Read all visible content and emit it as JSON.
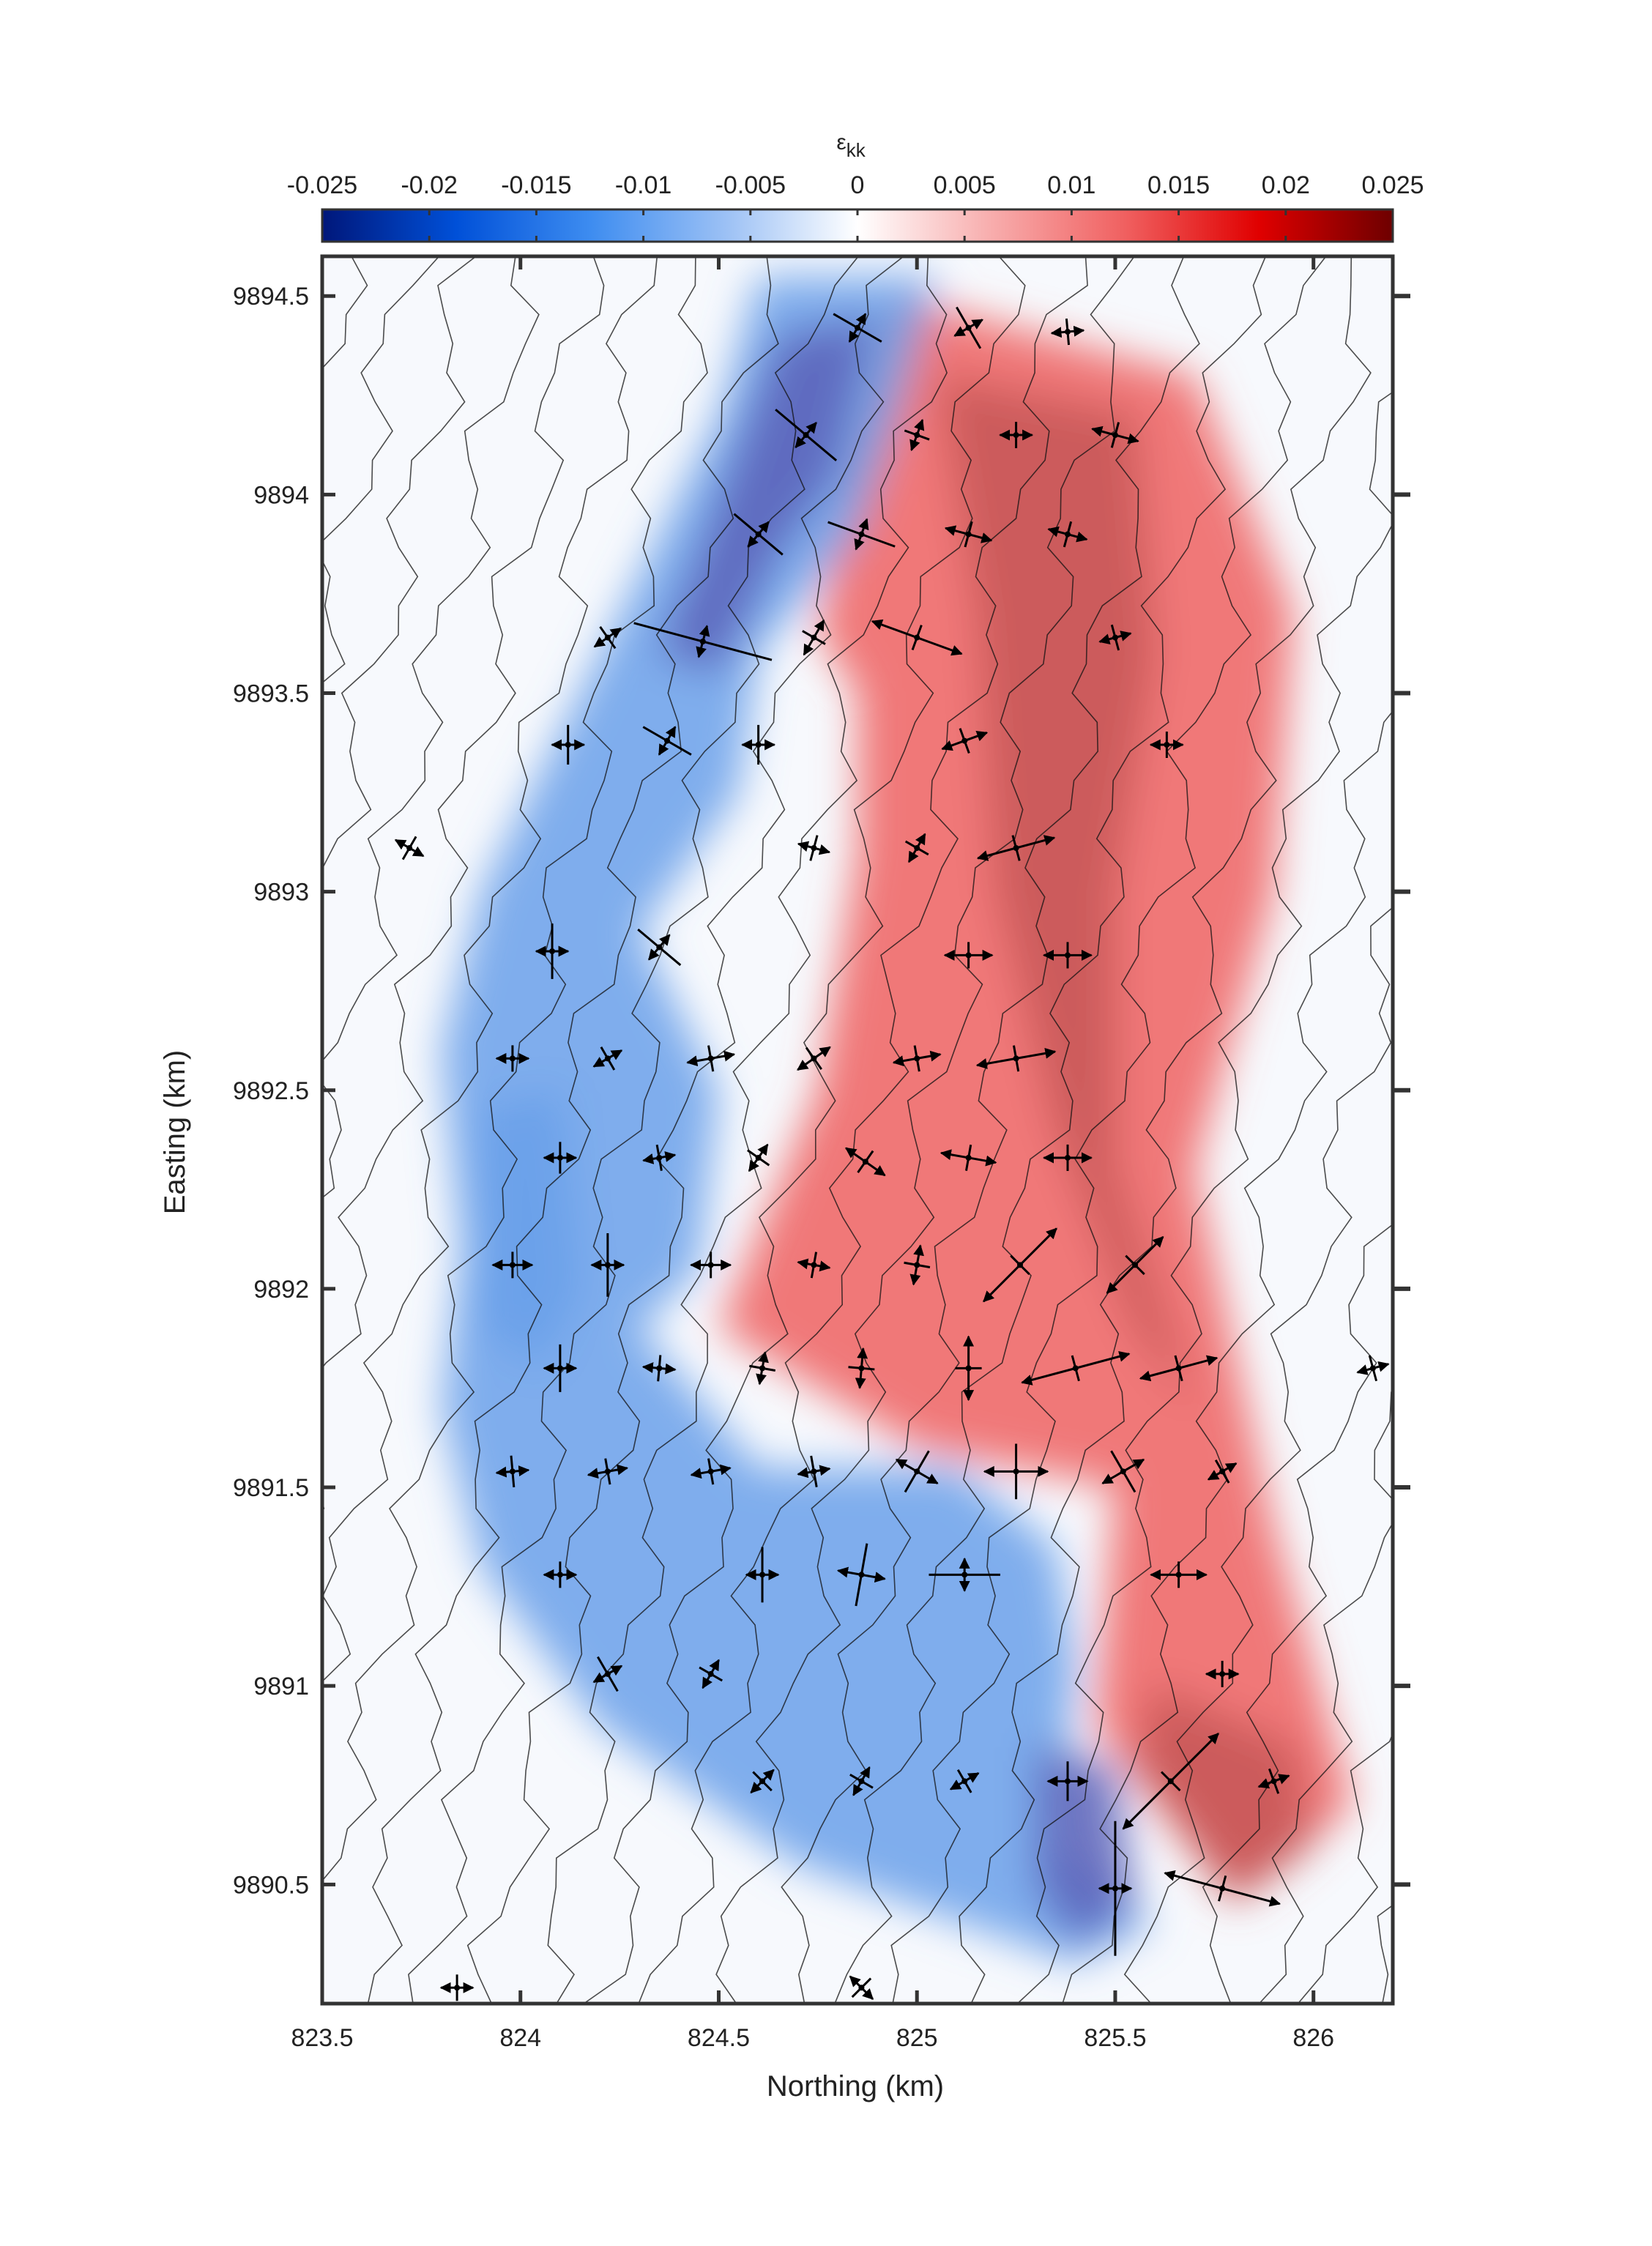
{
  "chart_data": {
    "type": "heatmap",
    "title": "",
    "xlabel": "Northing (km)",
    "ylabel": "Easting (km)",
    "xlim": [
      823.5,
      826.2
    ],
    "ylim": [
      9890.2,
      9894.6
    ],
    "xticks": [
      823.5,
      824,
      824.5,
      825,
      825.5,
      826
    ],
    "xtick_labels": [
      "823.5",
      "824",
      "824.5",
      "825",
      "825.5",
      "826"
    ],
    "yticks": [
      9890.5,
      9891,
      9891.5,
      9892,
      9892.5,
      9893,
      9893.5,
      9894,
      9894.5
    ],
    "ytick_labels": [
      "9890.5",
      "9891",
      "9891.5",
      "9892",
      "9892.5",
      "9893",
      "9893.5",
      "9894",
      "9894.5"
    ],
    "colorbar": {
      "title": "ε",
      "title_subscript": "kk",
      "location": "top",
      "range": [
        -0.025,
        0.025
      ],
      "ticks": [
        -0.025,
        -0.02,
        -0.015,
        -0.01,
        -0.005,
        0,
        0.005,
        0.01,
        0.015,
        0.02,
        0.025
      ],
      "tick_labels": [
        "-0.025",
        "-0.02",
        "-0.015",
        "-0.01",
        "-0.005",
        "0",
        "0.005",
        "0.01",
        "0.015",
        "0.02",
        "0.025"
      ],
      "colormap": [
        "#00177a",
        "#0050d8",
        "#3d8cf0",
        "#9ec2f5",
        "#ffffff",
        "#f8b0b0",
        "#f06060",
        "#e00000",
        "#6e0000"
      ]
    },
    "field_zones": [
      {
        "kind": "extension",
        "polygon": [
          [
            824.95,
            9894.5
          ],
          [
            825.7,
            9894.3
          ],
          [
            825.95,
            9893.7
          ],
          [
            825.9,
            9893.0
          ],
          [
            825.7,
            9892.3
          ],
          [
            825.9,
            9891.4
          ],
          [
            826.1,
            9890.7
          ],
          [
            825.8,
            9890.45
          ],
          [
            825.45,
            9890.9
          ],
          [
            825.5,
            9891.5
          ],
          [
            825.0,
            9891.6
          ],
          [
            824.5,
            9891.9
          ],
          [
            824.75,
            9892.5
          ],
          [
            824.85,
            9893.1
          ],
          [
            824.85,
            9893.5
          ],
          [
            824.75,
            9893.65
          ],
          [
            824.95,
            9894.5
          ]
        ],
        "value": 0.012
      },
      {
        "kind": "extension",
        "polygon": [
          [
            825.05,
            9894.3
          ],
          [
            825.55,
            9894.2
          ],
          [
            825.6,
            9893.6
          ],
          [
            825.5,
            9893.0
          ],
          [
            825.5,
            9892.3
          ],
          [
            825.7,
            9891.7
          ],
          [
            825.55,
            9891.9
          ],
          [
            825.35,
            9892.4
          ],
          [
            825.2,
            9893.0
          ],
          [
            825.15,
            9893.7
          ],
          [
            825.05,
            9894.3
          ]
        ],
        "value": 0.02
      },
      {
        "kind": "extension",
        "polygon": [
          [
            825.6,
            9891.0
          ],
          [
            825.95,
            9890.85
          ],
          [
            826.0,
            9890.6
          ],
          [
            825.8,
            9890.45
          ],
          [
            825.55,
            9890.8
          ],
          [
            825.6,
            9891.0
          ]
        ],
        "value": 0.02
      },
      {
        "kind": "contraction",
        "polygon": [
          [
            824.6,
            9894.55
          ],
          [
            825.05,
            9894.55
          ],
          [
            824.95,
            9894.2
          ],
          [
            824.85,
            9893.9
          ],
          [
            824.6,
            9893.6
          ],
          [
            824.55,
            9893.25
          ],
          [
            824.3,
            9892.9
          ],
          [
            824.5,
            9892.5
          ],
          [
            824.45,
            9892.05
          ],
          [
            824.3,
            9891.9
          ],
          [
            824.6,
            9891.55
          ],
          [
            825.1,
            9891.55
          ],
          [
            825.35,
            9891.35
          ],
          [
            825.4,
            9891.05
          ],
          [
            825.35,
            9890.6
          ],
          [
            825.6,
            9890.4
          ],
          [
            825.4,
            9890.3
          ],
          [
            824.7,
            9890.55
          ],
          [
            824.2,
            9890.9
          ],
          [
            823.9,
            9891.3
          ],
          [
            823.8,
            9891.7
          ],
          [
            823.85,
            9892.1
          ],
          [
            823.8,
            9892.6
          ],
          [
            823.9,
            9893.0
          ],
          [
            824.1,
            9893.4
          ],
          [
            824.3,
            9893.8
          ],
          [
            824.5,
            9894.2
          ],
          [
            824.6,
            9894.55
          ]
        ],
        "value": -0.01
      },
      {
        "kind": "contraction",
        "polygon": [
          [
            824.65,
            9894.4
          ],
          [
            824.9,
            9894.45
          ],
          [
            824.8,
            9894.05
          ],
          [
            824.65,
            9893.85
          ],
          [
            824.5,
            9893.55
          ],
          [
            824.35,
            9893.6
          ],
          [
            824.45,
            9893.85
          ],
          [
            824.65,
            9894.4
          ]
        ],
        "value": -0.018
      },
      {
        "kind": "contraction",
        "polygon": [
          [
            825.3,
            9890.85
          ],
          [
            825.5,
            9890.8
          ],
          [
            825.55,
            9890.45
          ],
          [
            825.4,
            9890.35
          ],
          [
            825.3,
            9890.5
          ],
          [
            825.3,
            9890.85
          ]
        ],
        "value": -0.02
      },
      {
        "kind": "contraction",
        "polygon": [
          [
            823.9,
            9892.45
          ],
          [
            824.1,
            9892.5
          ],
          [
            824.15,
            9892.0
          ],
          [
            824.05,
            9891.8
          ],
          [
            823.9,
            9891.9
          ],
          [
            823.9,
            9892.45
          ]
        ],
        "value": -0.016
      }
    ],
    "strain_crosses": [
      {
        "x": 823.72,
        "y": 9893.11,
        "ext_len": 0.03,
        "ext_ang": -30,
        "con_len": 0.03
      },
      {
        "x": 824.12,
        "y": 9893.37,
        "ext_len": 0.02,
        "ext_ang": 0,
        "con_len": 0.05
      },
      {
        "x": 824.22,
        "y": 9893.64,
        "ext_len": 0.03,
        "ext_ang": 35,
        "con_len": 0.03
      },
      {
        "x": 824.37,
        "y": 9893.38,
        "ext_len": 0.03,
        "ext_ang": 60,
        "con_len": 0.07
      },
      {
        "x": 824.46,
        "y": 9893.63,
        "ext_len": 0.03,
        "ext_ang": 75,
        "con_len": 0.18
      },
      {
        "x": 824.6,
        "y": 9893.9,
        "ext_len": 0.02,
        "ext_ang": 50,
        "con_len": 0.08
      },
      {
        "x": 824.72,
        "y": 9894.15,
        "ext_len": 0.02,
        "ext_ang": 50,
        "con_len": 0.1
      },
      {
        "x": 824.85,
        "y": 9894.42,
        "ext_len": 0.02,
        "ext_ang": 60,
        "con_len": 0.07
      },
      {
        "x": 825.13,
        "y": 9894.42,
        "ext_len": 0.02,
        "ext_ang": 30,
        "con_len": 0.06
      },
      {
        "x": 825.38,
        "y": 9894.41,
        "ext_len": 0.04,
        "ext_ang": 5,
        "con_len": 0.03
      },
      {
        "x": 825.0,
        "y": 9894.15,
        "ext_len": 0.03,
        "ext_ang": 70,
        "con_len": 0.03
      },
      {
        "x": 825.25,
        "y": 9894.15,
        "ext_len": 0.04,
        "ext_ang": 0,
        "con_len": 0.02
      },
      {
        "x": 825.5,
        "y": 9894.15,
        "ext_len": 0.06,
        "ext_ang": -15,
        "con_len": 0.02
      },
      {
        "x": 824.86,
        "y": 9893.9,
        "ext_len": 0.02,
        "ext_ang": 70,
        "con_len": 0.09
      },
      {
        "x": 825.13,
        "y": 9893.9,
        "ext_len": 0.06,
        "ext_ang": -15,
        "con_len": 0.02
      },
      {
        "x": 825.38,
        "y": 9893.9,
        "ext_len": 0.05,
        "ext_ang": -15,
        "con_len": 0.02
      },
      {
        "x": 824.74,
        "y": 9893.64,
        "ext_len": 0.05,
        "ext_ang": 60,
        "con_len": 0.03
      },
      {
        "x": 825.0,
        "y": 9893.64,
        "ext_len": 0.12,
        "ext_ang": -20,
        "con_len": 0.02
      },
      {
        "x": 825.5,
        "y": 9893.64,
        "ext_len": 0.04,
        "ext_ang": 15,
        "con_len": 0.02
      },
      {
        "x": 824.6,
        "y": 9893.37,
        "ext_len": 0.02,
        "ext_ang": 0,
        "con_len": 0.05
      },
      {
        "x": 825.12,
        "y": 9893.38,
        "ext_len": 0.06,
        "ext_ang": 20,
        "con_len": 0.02
      },
      {
        "x": 825.63,
        "y": 9893.37,
        "ext_len": 0.03,
        "ext_ang": 0,
        "con_len": 0.02
      },
      {
        "x": 824.74,
        "y": 9893.11,
        "ext_len": 0.02,
        "ext_ang": -15,
        "con_len": 0.03
      },
      {
        "x": 825.0,
        "y": 9893.11,
        "ext_len": 0.04,
        "ext_ang": 60,
        "con_len": 0.02
      },
      {
        "x": 825.25,
        "y": 9893.11,
        "ext_len": 0.1,
        "ext_ang": 15,
        "con_len": 0.02
      },
      {
        "x": 824.08,
        "y": 9892.85,
        "ext_len": 0.02,
        "ext_ang": 0,
        "con_len": 0.07
      },
      {
        "x": 824.35,
        "y": 9892.86,
        "ext_len": 0.03,
        "ext_ang": 50,
        "con_len": 0.07
      },
      {
        "x": 825.13,
        "y": 9892.84,
        "ext_len": 0.06,
        "ext_ang": 0,
        "con_len": 0.02
      },
      {
        "x": 825.38,
        "y": 9892.84,
        "ext_len": 0.06,
        "ext_ang": 0,
        "con_len": 0.02
      },
      {
        "x": 823.98,
        "y": 9892.58,
        "ext_len": 0.04,
        "ext_ang": 0,
        "con_len": 0.02
      },
      {
        "x": 824.22,
        "y": 9892.58,
        "ext_len": 0.03,
        "ext_ang": 30,
        "con_len": 0.02
      },
      {
        "x": 824.48,
        "y": 9892.58,
        "ext_len": 0.06,
        "ext_ang": 10,
        "con_len": 0.02
      },
      {
        "x": 824.74,
        "y": 9892.58,
        "ext_len": 0.05,
        "ext_ang": 35,
        "con_len": 0.02
      },
      {
        "x": 825.0,
        "y": 9892.58,
        "ext_len": 0.06,
        "ext_ang": 10,
        "con_len": 0.02
      },
      {
        "x": 825.25,
        "y": 9892.58,
        "ext_len": 0.1,
        "ext_ang": 10,
        "con_len": 0.02
      },
      {
        "x": 824.1,
        "y": 9892.33,
        "ext_len": 0.04,
        "ext_ang": 0,
        "con_len": 0.04
      },
      {
        "x": 824.35,
        "y": 9892.33,
        "ext_len": 0.04,
        "ext_ang": 10,
        "con_len": 0.02
      },
      {
        "x": 824.6,
        "y": 9892.33,
        "ext_len": 0.02,
        "ext_ang": 55,
        "con_len": 0.03
      },
      {
        "x": 824.87,
        "y": 9892.32,
        "ext_len": 0.06,
        "ext_ang": -35,
        "con_len": 0.02
      },
      {
        "x": 825.13,
        "y": 9892.33,
        "ext_len": 0.07,
        "ext_ang": -10,
        "con_len": 0.02
      },
      {
        "x": 825.38,
        "y": 9892.33,
        "ext_len": 0.06,
        "ext_ang": 0,
        "con_len": 0.02
      },
      {
        "x": 823.98,
        "y": 9892.06,
        "ext_len": 0.05,
        "ext_ang": 0,
        "con_len": 0.02
      },
      {
        "x": 824.22,
        "y": 9892.06,
        "ext_len": 0.03,
        "ext_ang": 0,
        "con_len": 0.08
      },
      {
        "x": 824.48,
        "y": 9892.06,
        "ext_len": 0.05,
        "ext_ang": 0,
        "con_len": 0.02
      },
      {
        "x": 824.74,
        "y": 9892.06,
        "ext_len": 0.03,
        "ext_ang": -10,
        "con_len": 0.02
      },
      {
        "x": 825.0,
        "y": 9892.06,
        "ext_len": 0.05,
        "ext_ang": 80,
        "con_len": 0.02
      },
      {
        "x": 825.26,
        "y": 9892.06,
        "ext_len": 0.13,
        "ext_ang": 45,
        "con_len": 0.02
      },
      {
        "x": 825.55,
        "y": 9892.06,
        "ext_len": 0.1,
        "ext_ang": 45,
        "con_len": 0.02
      },
      {
        "x": 824.1,
        "y": 9891.8,
        "ext_len": 0.03,
        "ext_ang": 0,
        "con_len": 0.06
      },
      {
        "x": 824.35,
        "y": 9891.8,
        "ext_len": 0.04,
        "ext_ang": -5,
        "con_len": 0.02
      },
      {
        "x": 824.61,
        "y": 9891.8,
        "ext_len": 0.04,
        "ext_ang": 80,
        "con_len": 0.02
      },
      {
        "x": 824.86,
        "y": 9891.8,
        "ext_len": 0.05,
        "ext_ang": 85,
        "con_len": 0.02
      },
      {
        "x": 825.13,
        "y": 9891.8,
        "ext_len": 0.08,
        "ext_ang": 90,
        "con_len": 0.02
      },
      {
        "x": 825.4,
        "y": 9891.8,
        "ext_len": 0.14,
        "ext_ang": 15,
        "con_len": 0.02
      },
      {
        "x": 825.66,
        "y": 9891.8,
        "ext_len": 0.1,
        "ext_ang": 15,
        "con_len": 0.02
      },
      {
        "x": 823.98,
        "y": 9891.54,
        "ext_len": 0.04,
        "ext_ang": 5,
        "con_len": 0.04
      },
      {
        "x": 824.22,
        "y": 9891.54,
        "ext_len": 0.05,
        "ext_ang": 10,
        "con_len": 0.03
      },
      {
        "x": 824.48,
        "y": 9891.54,
        "ext_len": 0.05,
        "ext_ang": 10,
        "con_len": 0.02
      },
      {
        "x": 824.74,
        "y": 9891.54,
        "ext_len": 0.04,
        "ext_ang": 10,
        "con_len": 0.04
      },
      {
        "x": 825.0,
        "y": 9891.54,
        "ext_len": 0.06,
        "ext_ang": -30,
        "con_len": 0.06
      },
      {
        "x": 825.25,
        "y": 9891.54,
        "ext_len": 0.08,
        "ext_ang": 0,
        "con_len": 0.07
      },
      {
        "x": 825.52,
        "y": 9891.54,
        "ext_len": 0.06,
        "ext_ang": 30,
        "con_len": 0.06
      },
      {
        "x": 825.77,
        "y": 9891.54,
        "ext_len": 0.04,
        "ext_ang": 30,
        "con_len": 0.02
      },
      {
        "x": 824.1,
        "y": 9891.28,
        "ext_len": 0.04,
        "ext_ang": 0,
        "con_len": 0.02
      },
      {
        "x": 824.61,
        "y": 9891.28,
        "ext_len": 0.02,
        "ext_ang": 0,
        "con_len": 0.07
      },
      {
        "x": 824.86,
        "y": 9891.28,
        "ext_len": 0.06,
        "ext_ang": -10,
        "con_len": 0.08
      },
      {
        "x": 825.12,
        "y": 9891.28,
        "ext_len": 0.03,
        "ext_ang": 90,
        "con_len": 0.09
      },
      {
        "x": 825.66,
        "y": 9891.28,
        "ext_len": 0.07,
        "ext_ang": 0,
        "con_len": 0.02
      },
      {
        "x": 824.22,
        "y": 9891.03,
        "ext_len": 0.03,
        "ext_ang": 30,
        "con_len": 0.05
      },
      {
        "x": 824.48,
        "y": 9891.03,
        "ext_len": 0.03,
        "ext_ang": 60,
        "con_len": 0.02
      },
      {
        "x": 825.77,
        "y": 9891.03,
        "ext_len": 0.04,
        "ext_ang": 0,
        "con_len": 0.02
      },
      {
        "x": 824.61,
        "y": 9890.76,
        "ext_len": 0.03,
        "ext_ang": 45,
        "con_len": 0.02
      },
      {
        "x": 824.86,
        "y": 9890.76,
        "ext_len": 0.03,
        "ext_ang": 60,
        "con_len": 0.02
      },
      {
        "x": 825.12,
        "y": 9890.76,
        "ext_len": 0.03,
        "ext_ang": 30,
        "con_len": 0.02
      },
      {
        "x": 825.38,
        "y": 9890.76,
        "ext_len": 0.05,
        "ext_ang": 0,
        "con_len": 0.05
      },
      {
        "x": 825.64,
        "y": 9890.76,
        "ext_len": 0.17,
        "ext_ang": 45,
        "con_len": 0.02
      },
      {
        "x": 825.9,
        "y": 9890.76,
        "ext_len": 0.04,
        "ext_ang": 20,
        "con_len": 0.02
      },
      {
        "x": 825.5,
        "y": 9890.49,
        "ext_len": 0.03,
        "ext_ang": 0,
        "con_len": 0.17
      },
      {
        "x": 825.77,
        "y": 9890.49,
        "ext_len": 0.15,
        "ext_ang": -15,
        "con_len": 0.02
      },
      {
        "x": 823.84,
        "y": 9890.24,
        "ext_len": 0.04,
        "ext_ang": 0,
        "con_len": 0.02
      },
      {
        "x": 824.86,
        "y": 9890.24,
        "ext_len": 0.03,
        "ext_ang": -45,
        "con_len": 0.03
      },
      {
        "x": 826.15,
        "y": 9891.8,
        "ext_len": 0.03,
        "ext_ang": 15,
        "con_len": 0.02
      }
    ],
    "grid": false,
    "legend": "none"
  }
}
